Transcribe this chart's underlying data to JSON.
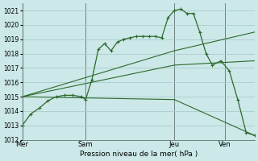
{
  "xlabel": "Pression niveau de la mer( hPa )",
  "bg_color": "#cce8e8",
  "grid_color": "#aacccc",
  "line_color": "#2d6a2d",
  "marker_color": "#2d6a2d",
  "ylim": [
    1012,
    1021.5
  ],
  "yticks": [
    1012,
    1013,
    1014,
    1015,
    1016,
    1017,
    1018,
    1019,
    1020,
    1021
  ],
  "xtick_labels": [
    "Mer",
    "Sam",
    "Jeu",
    "Ven"
  ],
  "xtick_pos": [
    0,
    30,
    72,
    96
  ],
  "vlines": [
    0,
    30,
    72,
    96
  ],
  "total_hours": 110,
  "series_marked": {
    "x": [
      0,
      4,
      8,
      12,
      16,
      20,
      24,
      28,
      30,
      33,
      36,
      39,
      42,
      45,
      48,
      51,
      54,
      57,
      60,
      63,
      66,
      69,
      72,
      75,
      78,
      81,
      84,
      87,
      90,
      94,
      98,
      102,
      106,
      110
    ],
    "y": [
      1013.0,
      1013.8,
      1014.2,
      1014.7,
      1015.0,
      1015.1,
      1015.1,
      1015.0,
      1014.8,
      1016.2,
      1018.3,
      1018.7,
      1018.2,
      1018.8,
      1019.0,
      1019.1,
      1019.2,
      1019.2,
      1019.2,
      1019.2,
      1019.1,
      1020.5,
      1021.0,
      1021.1,
      1020.8,
      1020.8,
      1019.5,
      1018.0,
      1017.2,
      1017.5,
      1016.8,
      1014.8,
      1012.5,
      1012.3
    ]
  },
  "fan_lines": [
    {
      "x": [
        0,
        72,
        110
      ],
      "y": [
        1015.0,
        1018.2,
        1019.5
      ]
    },
    {
      "x": [
        0,
        72,
        110
      ],
      "y": [
        1015.0,
        1017.2,
        1017.5
      ]
    },
    {
      "x": [
        0,
        72,
        110
      ],
      "y": [
        1015.0,
        1014.8,
        1012.3
      ]
    }
  ]
}
